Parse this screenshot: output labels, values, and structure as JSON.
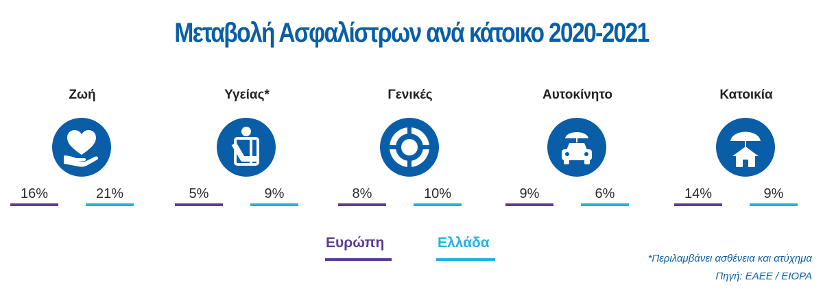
{
  "title": "Μεταβολή Ασφαλίστρων ανά κάτοικο 2020-2021",
  "colors": {
    "europe": "#5b3c96",
    "greece": "#21b2e3",
    "icon_bg": "#0a5ea8"
  },
  "legend": {
    "europe": "Ευρώπη",
    "greece": "Ελλάδα"
  },
  "notes": {
    "footnote": "*Περιλαμβάνει ασθένεια και ατύχημα",
    "source": "Πηγή: ΕΑΕΕ / EIOPA"
  },
  "chart_data": {
    "type": "bar",
    "title": "Μεταβολή Ασφαλίστρων ανά κάτοικο 2020-2021",
    "categories": [
      "Ζωή",
      "Υγείας*",
      "Γενικές",
      "Αυτοκίνητο",
      "Κατοικία"
    ],
    "icons": [
      "heart-hand-icon",
      "injured-person-icon",
      "lifebuoy-icon",
      "car-umbrella-icon",
      "house-umbrella-icon"
    ],
    "series": [
      {
        "name": "Ευρώπη",
        "values": [
          16,
          5,
          8,
          9,
          14
        ],
        "labels": [
          "16%",
          "5%",
          "8%",
          "9%",
          "14%"
        ]
      },
      {
        "name": "Ελλάδα",
        "values": [
          21,
          9,
          10,
          6,
          9
        ],
        "labels": [
          "21%",
          "9%",
          "10%",
          "6%",
          "9%"
        ]
      }
    ]
  }
}
